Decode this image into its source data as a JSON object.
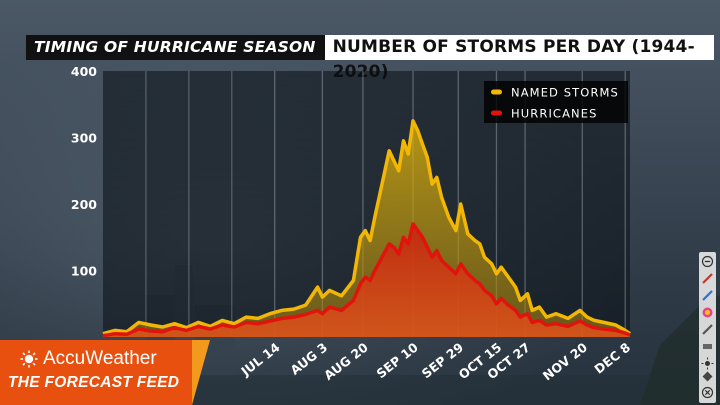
{
  "header": {
    "title_left": "TIMING OF HURRICANE SEASON",
    "title_right": "NUMBER OF STORMS PER DAY (1944-2020)"
  },
  "brand": {
    "logo_text": "AccuWeather",
    "feed_text": "THE FORECAST FEED",
    "colors": {
      "orange": "#e8500f",
      "stripe": "#f39a1e"
    }
  },
  "toolbar": {
    "icons": [
      "minus-circle-icon",
      "pen-icon",
      "paint-icon",
      "color-wheel-icon",
      "pencil-icon",
      "eraser-icon",
      "sun-icon",
      "marker-icon",
      "close-circle-icon"
    ]
  },
  "chart_data": {
    "type": "area",
    "title": "NUMBER OF STORMS PER DAY (1944-2020)",
    "ylim": [
      0,
      400
    ],
    "y_ticks": [
      "400",
      "300",
      "200",
      "100"
    ],
    "x_tick_labels": [
      {
        "label": "JUL 14",
        "day": 72
      },
      {
        "label": "AUG 3",
        "day": 92
      },
      {
        "label": "AUG 20",
        "day": 109
      },
      {
        "label": "SEP 10",
        "day": 130
      },
      {
        "label": "SEP 29",
        "day": 149
      },
      {
        "label": "OCT 15",
        "day": 165
      },
      {
        "label": "OCT 27",
        "day": 177
      },
      {
        "label": "NOV 20",
        "day": 201
      },
      {
        "label": "DEC 8",
        "day": 219
      }
    ],
    "xlim": [
      0,
      221
    ],
    "grid": "vertical",
    "legend_position": "top-right",
    "colors": {
      "named": "#f2b705",
      "hurricanes": "#e0140d"
    },
    "series": [
      {
        "name": "NAMED STORMS",
        "x": [
          0,
          5,
          10,
          15,
          20,
          25,
          30,
          35,
          40,
          45,
          50,
          55,
          60,
          65,
          70,
          75,
          80,
          85,
          90,
          92,
          95,
          100,
          105,
          108,
          110,
          112,
          114,
          117,
          120,
          122,
          124,
          126,
          128,
          130,
          132,
          134,
          136,
          138,
          140,
          142,
          145,
          148,
          150,
          153,
          156,
          158,
          160,
          163,
          165,
          167,
          170,
          173,
          175,
          178,
          180,
          183,
          186,
          190,
          195,
          200,
          203,
          206,
          210,
          215,
          219,
          221
        ],
        "values": [
          5,
          10,
          8,
          22,
          18,
          15,
          20,
          14,
          22,
          16,
          25,
          20,
          30,
          28,
          35,
          40,
          42,
          48,
          75,
          60,
          70,
          62,
          85,
          150,
          160,
          145,
          180,
          230,
          280,
          265,
          250,
          295,
          275,
          325,
          310,
          290,
          270,
          230,
          240,
          210,
          180,
          160,
          200,
          155,
          145,
          140,
          120,
          110,
          95,
          105,
          90,
          75,
          55,
          65,
          40,
          45,
          30,
          35,
          28,
          40,
          30,
          25,
          22,
          18,
          10,
          5
        ]
      },
      {
        "name": "HURRICANES",
        "x": [
          0,
          5,
          10,
          15,
          20,
          25,
          30,
          35,
          40,
          45,
          50,
          55,
          60,
          65,
          70,
          75,
          80,
          85,
          90,
          92,
          95,
          100,
          105,
          108,
          110,
          112,
          114,
          117,
          120,
          122,
          124,
          126,
          128,
          130,
          132,
          134,
          136,
          138,
          140,
          142,
          145,
          148,
          150,
          153,
          156,
          158,
          160,
          163,
          165,
          167,
          170,
          173,
          175,
          178,
          180,
          183,
          186,
          190,
          195,
          200,
          203,
          206,
          210,
          215,
          219,
          221
        ],
        "values": [
          2,
          5,
          4,
          12,
          9,
          8,
          14,
          10,
          16,
          12,
          18,
          15,
          22,
          20,
          24,
          28,
          30,
          34,
          40,
          35,
          45,
          40,
          55,
          80,
          90,
          85,
          100,
          120,
          140,
          135,
          125,
          150,
          140,
          170,
          160,
          150,
          135,
          120,
          130,
          115,
          105,
          95,
          110,
          95,
          85,
          80,
          70,
          62,
          50,
          58,
          48,
          40,
          30,
          35,
          22,
          25,
          18,
          20,
          16,
          24,
          18,
          14,
          12,
          10,
          6,
          3
        ]
      }
    ]
  }
}
